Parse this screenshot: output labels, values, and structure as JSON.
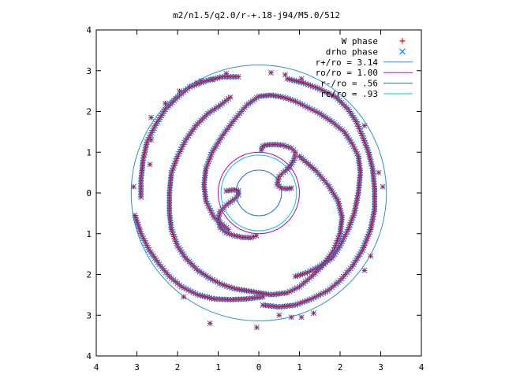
{
  "chart_data": {
    "type": "scatter",
    "title": "m2/n1.5/q2.0/r-+.18-j94/M5.0/512",
    "xlabel": "",
    "ylabel": "",
    "xlim": [
      -4,
      4
    ],
    "ylim": [
      -4,
      4
    ],
    "x_ticks": [
      -4,
      -3,
      -2,
      -1,
      0,
      1,
      2,
      3,
      4
    ],
    "y_ticks": [
      -4,
      -3,
      -2,
      -1,
      0,
      1,
      2,
      3,
      4
    ],
    "x_tick_labels": [
      "4",
      "3",
      "2",
      "1",
      "0",
      "1",
      "2",
      "3",
      "4"
    ],
    "y_tick_labels": [
      "4",
      "3",
      "2",
      "1",
      "0",
      "1",
      "2",
      "3",
      "4"
    ],
    "grid": false,
    "legend_position": "top-right",
    "legend": [
      {
        "label": "W phase",
        "kind": "point",
        "marker": "+",
        "color": "#ff0000"
      },
      {
        "label": "drho phase",
        "kind": "point",
        "marker": "x",
        "color": "#0080ff"
      },
      {
        "label": "r+/ro = 3.14",
        "kind": "line",
        "color": "#2e8fd6",
        "radius": 3.14
      },
      {
        "label": "ro/ro = 1.00",
        "kind": "line",
        "color": "#c000c0",
        "radius": 1.0
      },
      {
        "label": "r-/ro = .56",
        "kind": "line",
        "color": "#1a70c0",
        "radius": 0.56
      },
      {
        "label": "rc/ro = .93",
        "kind": "line",
        "color": "#00c8c8",
        "radius": 0.93
      }
    ],
    "series": [
      {
        "name": "W phase",
        "marker": "+",
        "color": "#ff0000"
      },
      {
        "name": "drho phase",
        "marker": "x",
        "color": "#0080ff"
      }
    ],
    "spiral_arms": [
      {
        "description": "arm A",
        "points": [
          [
            0.06,
            1.05
          ],
          [
            0.1,
            1.15
          ],
          [
            0.2,
            1.18
          ],
          [
            0.4,
            1.19
          ],
          [
            0.6,
            1.17
          ],
          [
            0.8,
            1.1
          ],
          [
            0.9,
            1.0
          ],
          [
            0.88,
            0.85
          ],
          [
            0.8,
            0.7
          ],
          [
            0.7,
            0.58
          ],
          [
            0.6,
            0.5
          ],
          [
            0.5,
            0.4
          ],
          [
            0.45,
            0.2
          ],
          [
            0.55,
            0.12
          ],
          [
            0.7,
            0.1
          ],
          [
            0.8,
            0.12
          ]
        ]
      },
      {
        "description": "arm B",
        "points": [
          [
            -0.06,
            -1.05
          ],
          [
            -0.2,
            -1.1
          ],
          [
            -0.4,
            -1.09
          ],
          [
            -0.6,
            -1.05
          ],
          [
            -0.8,
            -0.98
          ],
          [
            -0.95,
            -0.85
          ],
          [
            -1.0,
            -0.65
          ],
          [
            -0.95,
            -0.45
          ],
          [
            -0.8,
            -0.3
          ],
          [
            -0.6,
            -0.15
          ],
          [
            -0.5,
            -0.05
          ],
          [
            -0.5,
            0.05
          ],
          [
            -0.6,
            0.08
          ],
          [
            -0.8,
            0.05
          ]
        ]
      },
      {
        "description": "arm C",
        "points": [
          [
            -0.75,
            -0.9
          ],
          [
            -1.1,
            -0.6
          ],
          [
            -1.3,
            -0.2
          ],
          [
            -1.35,
            0.2
          ],
          [
            -1.3,
            0.6
          ],
          [
            -1.15,
            1.0
          ],
          [
            -0.9,
            1.4
          ],
          [
            -0.6,
            1.8
          ],
          [
            -0.3,
            2.15
          ],
          [
            0.0,
            2.37
          ],
          [
            0.3,
            2.4
          ],
          [
            0.6,
            2.35
          ],
          [
            0.9,
            2.25
          ],
          [
            1.2,
            2.1
          ],
          [
            1.5,
            1.95
          ],
          [
            1.8,
            1.75
          ],
          [
            2.1,
            1.5
          ],
          [
            2.3,
            1.2
          ],
          [
            2.45,
            0.9
          ],
          [
            2.5,
            0.5
          ],
          [
            2.45,
            0.0
          ],
          [
            2.35,
            -0.5
          ],
          [
            2.2,
            -0.9
          ],
          [
            2.0,
            -1.3
          ],
          [
            1.8,
            -1.6
          ],
          [
            1.5,
            -1.8
          ],
          [
            1.2,
            -1.95
          ],
          [
            0.9,
            -2.05
          ]
        ]
      },
      {
        "description": "arm D",
        "points": [
          [
            1.0,
            0.9
          ],
          [
            1.4,
            0.55
          ],
          [
            1.7,
            0.2
          ],
          [
            1.95,
            -0.2
          ],
          [
            2.05,
            -0.6
          ],
          [
            2.0,
            -1.0
          ],
          [
            1.85,
            -1.4
          ],
          [
            1.6,
            -1.75
          ],
          [
            1.3,
            -2.05
          ],
          [
            1.0,
            -2.3
          ],
          [
            0.7,
            -2.45
          ],
          [
            0.3,
            -2.5
          ],
          [
            0.0,
            -2.45
          ],
          [
            -0.3,
            -2.4
          ],
          [
            -0.6,
            -2.35
          ],
          [
            -0.9,
            -2.25
          ],
          [
            -1.2,
            -2.1
          ],
          [
            -1.5,
            -1.9
          ],
          [
            -1.8,
            -1.6
          ],
          [
            -2.0,
            -1.3
          ],
          [
            -2.15,
            -0.9
          ],
          [
            -2.2,
            -0.5
          ],
          [
            -2.2,
            0.0
          ],
          [
            -2.15,
            0.5
          ],
          [
            -2.0,
            0.9
          ],
          [
            -1.8,
            1.3
          ],
          [
            -1.55,
            1.65
          ],
          [
            -1.25,
            1.95
          ],
          [
            -0.95,
            2.15
          ],
          [
            -0.7,
            2.35
          ]
        ]
      },
      {
        "description": "outer arm E",
        "points": [
          [
            -0.5,
            2.85
          ],
          [
            -0.9,
            2.85
          ],
          [
            -1.3,
            2.75
          ],
          [
            -1.7,
            2.6
          ],
          [
            -2.0,
            2.35
          ],
          [
            -2.3,
            2.05
          ],
          [
            -2.55,
            1.65
          ],
          [
            -2.75,
            1.25
          ],
          [
            -2.85,
            0.8
          ],
          [
            -2.9,
            0.3
          ],
          [
            -2.9,
            -0.1
          ]
        ]
      },
      {
        "description": "outer arm F",
        "points": [
          [
            -3.05,
            -0.55
          ],
          [
            -2.9,
            -1.0
          ],
          [
            -2.7,
            -1.4
          ],
          [
            -2.45,
            -1.75
          ],
          [
            -2.2,
            -2.05
          ],
          [
            -1.9,
            -2.3
          ],
          [
            -1.5,
            -2.5
          ],
          [
            -1.1,
            -2.6
          ],
          [
            -0.7,
            -2.62
          ],
          [
            -0.3,
            -2.6
          ],
          [
            0.1,
            -2.55
          ]
        ]
      },
      {
        "description": "outer arm G",
        "points": [
          [
            0.1,
            -2.75
          ],
          [
            0.5,
            -2.8
          ],
          [
            0.9,
            -2.75
          ],
          [
            1.3,
            -2.6
          ],
          [
            1.7,
            -2.4
          ],
          [
            2.0,
            -2.15
          ],
          [
            2.3,
            -1.8
          ],
          [
            2.55,
            -1.4
          ],
          [
            2.75,
            -0.9
          ],
          [
            2.85,
            -0.4
          ],
          [
            2.85,
            0.1
          ],
          [
            2.8,
            0.6
          ],
          [
            2.7,
            1.0
          ],
          [
            2.55,
            1.4
          ],
          [
            2.4,
            1.75
          ],
          [
            2.2,
            2.05
          ],
          [
            1.9,
            2.35
          ],
          [
            1.5,
            2.55
          ],
          [
            1.1,
            2.7
          ],
          [
            0.7,
            2.8
          ]
        ]
      },
      {
        "description": "outer scattered",
        "points": [
          [
            -3.08,
            0.15
          ],
          [
            -1.85,
            -2.55
          ],
          [
            -1.2,
            -3.2
          ],
          [
            -0.05,
            -3.3
          ],
          [
            0.5,
            -3.0
          ],
          [
            0.8,
            -3.05
          ],
          [
            1.05,
            -3.05
          ],
          [
            1.35,
            -2.95
          ],
          [
            2.6,
            -1.9
          ],
          [
            2.75,
            -1.55
          ],
          [
            3.05,
            0.15
          ],
          [
            2.95,
            0.5
          ],
          [
            2.6,
            1.65
          ],
          [
            1.05,
            2.8
          ],
          [
            0.65,
            2.9
          ],
          [
            0.3,
            2.95
          ],
          [
            -0.8,
            2.93
          ],
          [
            -1.15,
            2.78
          ],
          [
            -1.42,
            2.75
          ],
          [
            -1.52,
            2.7
          ],
          [
            -1.95,
            2.5
          ],
          [
            -2.3,
            2.2
          ],
          [
            -2.65,
            1.85
          ],
          [
            -2.65,
            1.3
          ],
          [
            -2.68,
            0.7
          ]
        ]
      }
    ]
  }
}
